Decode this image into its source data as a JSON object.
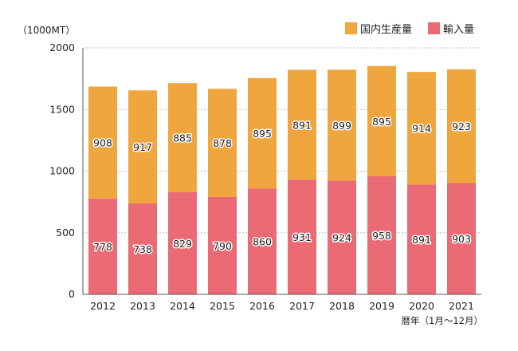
{
  "chart_data": {
    "type": "bar",
    "stacked": true,
    "unit_label": "（1000MT）",
    "xlabel": "暦年（1月〜12月）",
    "ylim": [
      0,
      2000
    ],
    "yticks": [
      0,
      500,
      1000,
      1500,
      2000
    ],
    "grid": true,
    "legend_position": "top-right",
    "categories": [
      "2012",
      "2013",
      "2014",
      "2015",
      "2016",
      "2017",
      "2018",
      "2019",
      "2020",
      "2021"
    ],
    "series": [
      {
        "name": "輸入量",
        "color": "#ea6a76",
        "values": [
          778,
          738,
          829,
          790,
          860,
          931,
          924,
          958,
          891,
          903
        ]
      },
      {
        "name": "国内生産量",
        "color": "#f0a63e",
        "values": [
          908,
          917,
          885,
          878,
          895,
          891,
          899,
          895,
          914,
          923
        ]
      }
    ],
    "legend_order": [
      1,
      0
    ]
  }
}
